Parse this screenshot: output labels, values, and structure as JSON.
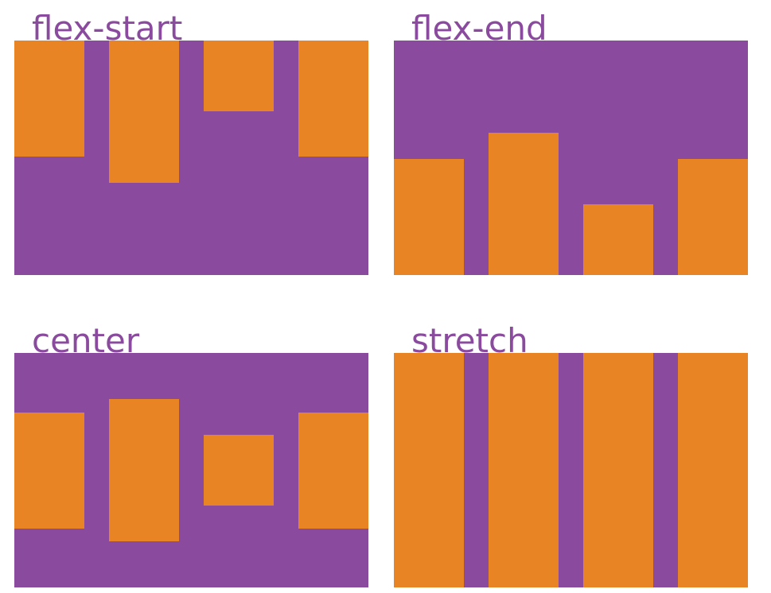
{
  "panels": [
    {
      "label": "flex-start",
      "align": "flex-start"
    },
    {
      "label": "flex-end",
      "align": "flex-end"
    },
    {
      "label": "center",
      "align": "center"
    },
    {
      "label": "stretch",
      "align": "stretch"
    }
  ],
  "colors": {
    "container": "#8a4a9e",
    "item": "#e88424",
    "label": "#8a4a9e",
    "background": "#ffffff"
  }
}
